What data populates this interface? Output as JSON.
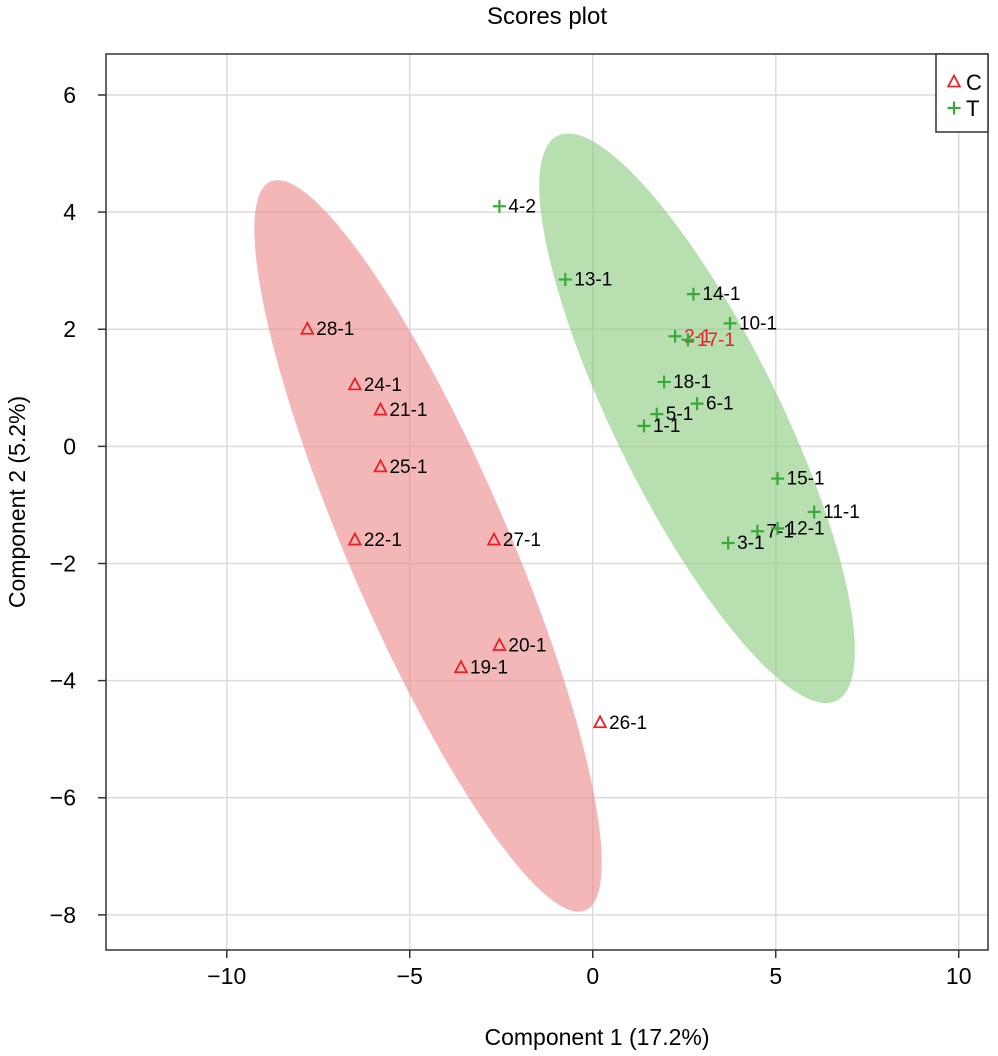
{
  "chart_data": {
    "type": "scatter",
    "title": "Scores plot",
    "xlabel": "Component 1 (17.2%)",
    "ylabel": "Component 2 (5.2%)",
    "xlim": [
      -13.3,
      10.8
    ],
    "ylim": [
      -8.6,
      6.7
    ],
    "xticks": [
      {
        "value": -10,
        "label": "−10"
      },
      {
        "value": -5,
        "label": "−5"
      },
      {
        "value": 0,
        "label": "0"
      },
      {
        "value": 5,
        "label": "5"
      },
      {
        "value": 10,
        "label": "10"
      }
    ],
    "yticks": [
      {
        "value": 6,
        "label": "6"
      },
      {
        "value": 4,
        "label": "4"
      },
      {
        "value": 2,
        "label": "2"
      },
      {
        "value": 0,
        "label": "0"
      },
      {
        "value": -2,
        "label": "−2"
      },
      {
        "value": -4,
        "label": "−4"
      },
      {
        "value": -6,
        "label": "−6"
      },
      {
        "value": -8,
        "label": "−8"
      }
    ],
    "grid": true,
    "legend_position": "top-right",
    "series": [
      {
        "name": "C",
        "marker": "triangle",
        "color": "#e8212a",
        "ellipse_color": "#eb8a8a",
        "ellipse": {
          "cx": -4.5,
          "cy": -1.7,
          "rx": 7.6,
          "ry": 1.95,
          "angle_deg": -53.9
        },
        "points": [
          {
            "label": "28-1",
            "x": -7.8,
            "y": 2.0
          },
          {
            "label": "24-1",
            "x": -6.5,
            "y": 1.05
          },
          {
            "label": "21-1",
            "x": -5.8,
            "y": 0.62
          },
          {
            "label": "25-1",
            "x": -5.8,
            "y": -0.35
          },
          {
            "label": "22-1",
            "x": -6.5,
            "y": -1.6
          },
          {
            "label": "27-1",
            "x": -2.7,
            "y": -1.6
          },
          {
            "label": "20-1",
            "x": -2.55,
            "y": -3.4
          },
          {
            "label": "19-1",
            "x": -3.6,
            "y": -3.78
          },
          {
            "label": "26-1",
            "x": 0.2,
            "y": -4.72
          }
        ]
      },
      {
        "name": "T",
        "marker": "plus",
        "color": "#3aa93a",
        "ellipse_color": "#8ccc80",
        "ellipse": {
          "cx": 2.85,
          "cy": 0.48,
          "rx": 6.2,
          "ry": 1.95,
          "angle_deg": -49.2
        },
        "points": [
          {
            "label": "4-2",
            "x": -2.55,
            "y": 4.1
          },
          {
            "label": "13-1",
            "x": -0.75,
            "y": 2.85
          },
          {
            "label": "14-1",
            "x": 2.75,
            "y": 2.6
          },
          {
            "label": "10-1",
            "x": 3.75,
            "y": 2.1
          },
          {
            "label": "2-1",
            "x": 2.25,
            "y": 1.88,
            "label_color": "#e8212a"
          },
          {
            "label": "17-1",
            "x": 2.6,
            "y": 1.82,
            "label_color": "#e8212a"
          },
          {
            "label": "18-1",
            "x": 1.95,
            "y": 1.1
          },
          {
            "label": "6-1",
            "x": 2.85,
            "y": 0.73
          },
          {
            "label": "5-1",
            "x": 1.75,
            "y": 0.55
          },
          {
            "label": "1-1",
            "x": 1.4,
            "y": 0.35
          },
          {
            "label": "15-1",
            "x": 5.05,
            "y": -0.55
          },
          {
            "label": "11-1",
            "x": 6.05,
            "y": -1.12
          },
          {
            "label": "7-1",
            "x": 4.5,
            "y": -1.45
          },
          {
            "label": "12-1",
            "x": 5.05,
            "y": -1.4
          },
          {
            "label": "3-1",
            "x": 3.7,
            "y": -1.65
          }
        ]
      }
    ]
  }
}
